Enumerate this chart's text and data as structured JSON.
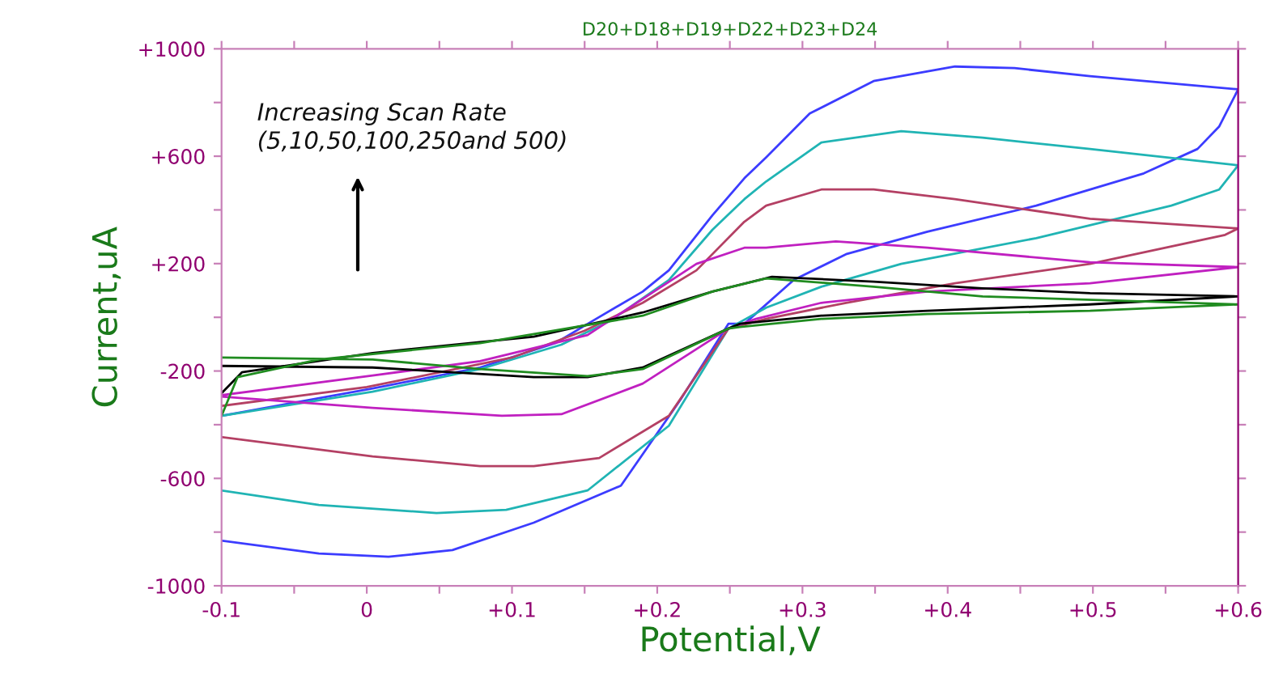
{
  "chart_data": {
    "type": "line",
    "title": "D20+D18+D19+D22+D23+D24",
    "xlabel": "Potential,V",
    "ylabel": "Current,uA",
    "annotations": [
      "Increasing Scan Rate\n(5,10,50,100,250and 500)"
    ],
    "xlim": [
      -0.1,
      0.6
    ],
    "ylim": [
      -1000,
      1000
    ],
    "xticks": [
      {
        "value": -0.1,
        "label": "-0.1"
      },
      {
        "value": -0.05,
        "label": null
      },
      {
        "value": 0,
        "label": "0"
      },
      {
        "value": 0.05,
        "label": null
      },
      {
        "value": 0.1,
        "label": "+0.1"
      },
      {
        "value": 0.15,
        "label": null
      },
      {
        "value": 0.2,
        "label": "+0.2"
      },
      {
        "value": 0.25,
        "label": null
      },
      {
        "value": 0.3,
        "label": "+0.3"
      },
      {
        "value": 0.35,
        "label": null
      },
      {
        "value": 0.4,
        "label": "+0.4"
      },
      {
        "value": 0.45,
        "label": null
      },
      {
        "value": 0.5,
        "label": "+0.5"
      },
      {
        "value": 0.55,
        "label": null
      },
      {
        "value": 0.6,
        "label": "+0.6"
      }
    ],
    "yticks": [
      -1000,
      {
        "value": -800,
        "label": null
      },
      -600,
      {
        "value": -400,
        "label": null
      },
      -200,
      {
        "value": 0,
        "label": null
      },
      {
        "value": 200,
        "label": "+200"
      },
      {
        "value": 400,
        "label": null
      },
      {
        "value": 600,
        "label": "+600"
      },
      {
        "value": 800,
        "label": null
      },
      {
        "value": 1000,
        "label": "+1000"
      }
    ],
    "grid": false,
    "legend": false,
    "marker": "none",
    "line_style": "solid",
    "series": [
      {
        "color": "#3c3cff",
        "x": [
          -0.1,
          0.004,
          0.078,
          0.13,
          0.156,
          0.19,
          0.208,
          0.238,
          0.26,
          0.275,
          0.305,
          0.349,
          0.405,
          0.446,
          0.498,
          0.6,
          0.587,
          0.572,
          0.535,
          0.461,
          0.386,
          0.33,
          0.294,
          0.26,
          0.249,
          0.216,
          0.175,
          0.115,
          0.059,
          0.015,
          -0.033,
          -0.1
        ],
        "values": [
          -367,
          -265,
          -187,
          -96,
          -12,
          96,
          175,
          380,
          518,
          596,
          759,
          880,
          934,
          928,
          898,
          849,
          711,
          627,
          536,
          416,
          319,
          235,
          139,
          -24,
          -24,
          -307,
          -627,
          -765,
          -867,
          -892,
          -880,
          -832
        ]
      },
      {
        "color": "#20b4b4",
        "x": [
          -0.1,
          0.004,
          0.078,
          0.134,
          0.168,
          0.208,
          0.238,
          0.26,
          0.275,
          0.313,
          0.368,
          0.424,
          0.498,
          0.6,
          0.587,
          0.554,
          0.461,
          0.368,
          0.313,
          0.275,
          0.249,
          0.208,
          0.152,
          0.096,
          0.048,
          -0.033,
          -0.1
        ],
        "values": [
          -367,
          -277,
          -193,
          -102,
          -12,
          139,
          326,
          440,
          506,
          651,
          693,
          669,
          627,
          566,
          476,
          416,
          295,
          199,
          114,
          36,
          -42,
          -404,
          -645,
          -717,
          -729,
          -699,
          -645
        ]
      },
      {
        "color": "#b44064",
        "x": [
          -0.1,
          0.0,
          0.1,
          0.15,
          0.19,
          0.227,
          0.26,
          0.275,
          0.313,
          0.349,
          0.405,
          0.498,
          0.6,
          0.591,
          0.498,
          0.405,
          0.33,
          0.275,
          0.249,
          0.208,
          0.16,
          0.115,
          0.078,
          0.004,
          -0.1
        ],
        "values": [
          -330,
          -260,
          -150,
          -50,
          54,
          175,
          356,
          416,
          476,
          476,
          440,
          367,
          331,
          307,
          199,
          127,
          54,
          -6,
          -42,
          -367,
          -524,
          -554,
          -554,
          -518,
          -446
        ]
      },
      {
        "color": "#c020c0",
        "x": [
          -0.1,
          0.004,
          0.078,
          0.152,
          0.227,
          0.26,
          0.275,
          0.323,
          0.386,
          0.498,
          0.6,
          0.498,
          0.386,
          0.313,
          0.268,
          0.249,
          0.19,
          0.134,
          0.093,
          0.004,
          -0.1
        ],
        "values": [
          -290,
          -217,
          -163,
          -66,
          199,
          259,
          259,
          283,
          259,
          205,
          187,
          127,
          96,
          54,
          -6,
          -42,
          -247,
          -361,
          -367,
          -337,
          -295
        ]
      },
      {
        "color": "#000000",
        "x": [
          -0.1,
          -0.086,
          0.004,
          0.115,
          0.19,
          0.238,
          0.279,
          0.349,
          0.424,
          0.498,
          0.6,
          0.498,
          0.386,
          0.313,
          0.257,
          0.249,
          0.19,
          0.152,
          0.115,
          0.004,
          -0.1
        ],
        "values": [
          -283,
          -205,
          -133,
          -72,
          18,
          96,
          151,
          133,
          108,
          90,
          78,
          48,
          24,
          6,
          -24,
          -42,
          -187,
          -223,
          -223,
          -187,
          -181
        ]
      },
      {
        "color": "#208c20",
        "x": [
          -0.1,
          -0.089,
          -0.033,
          0.078,
          0.19,
          0.238,
          0.275,
          0.349,
          0.424,
          0.6,
          0.498,
          0.386,
          0.313,
          0.257,
          0.249,
          0.19,
          0.152,
          0.078,
          0.004,
          -0.1
        ],
        "values": [
          -367,
          -223,
          -157,
          -96,
          6,
          96,
          145,
          114,
          78,
          48,
          24,
          12,
          -6,
          -36,
          -42,
          -193,
          -219,
          -193,
          -157,
          -150
        ]
      }
    ]
  }
}
